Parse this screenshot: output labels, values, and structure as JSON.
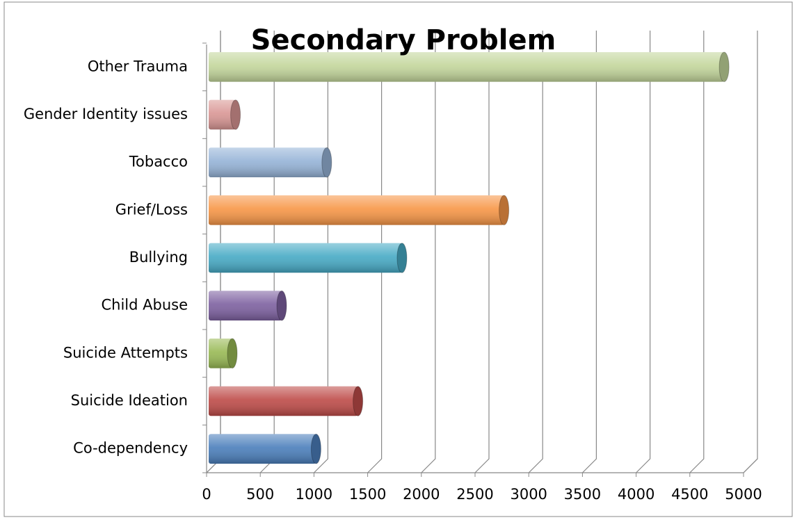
{
  "chart_data": {
    "type": "bar",
    "orientation": "horizontal",
    "title": "Secondary Problem",
    "categories": [
      "Co-dependency",
      "Suicide Ideation",
      "Suicide Attempts",
      "Child Abuse",
      "Bullying",
      "Grief/Loss",
      "Tobacco",
      "Gender Identity issues",
      "Other Trauma"
    ],
    "values": [
      1000,
      1390,
      220,
      680,
      1800,
      2750,
      1100,
      250,
      4800
    ],
    "colors": [
      "#4a7ebb",
      "#be4b48",
      "#98b954",
      "#7d60a0",
      "#46aac5",
      "#f79646",
      "#95b3d7",
      "#d99694",
      "#c3d69b"
    ],
    "xlim": [
      0,
      5000
    ],
    "xticks": [
      0,
      500,
      1000,
      1500,
      2000,
      2500,
      3000,
      3500,
      4000,
      4500,
      5000
    ],
    "grid": true
  }
}
